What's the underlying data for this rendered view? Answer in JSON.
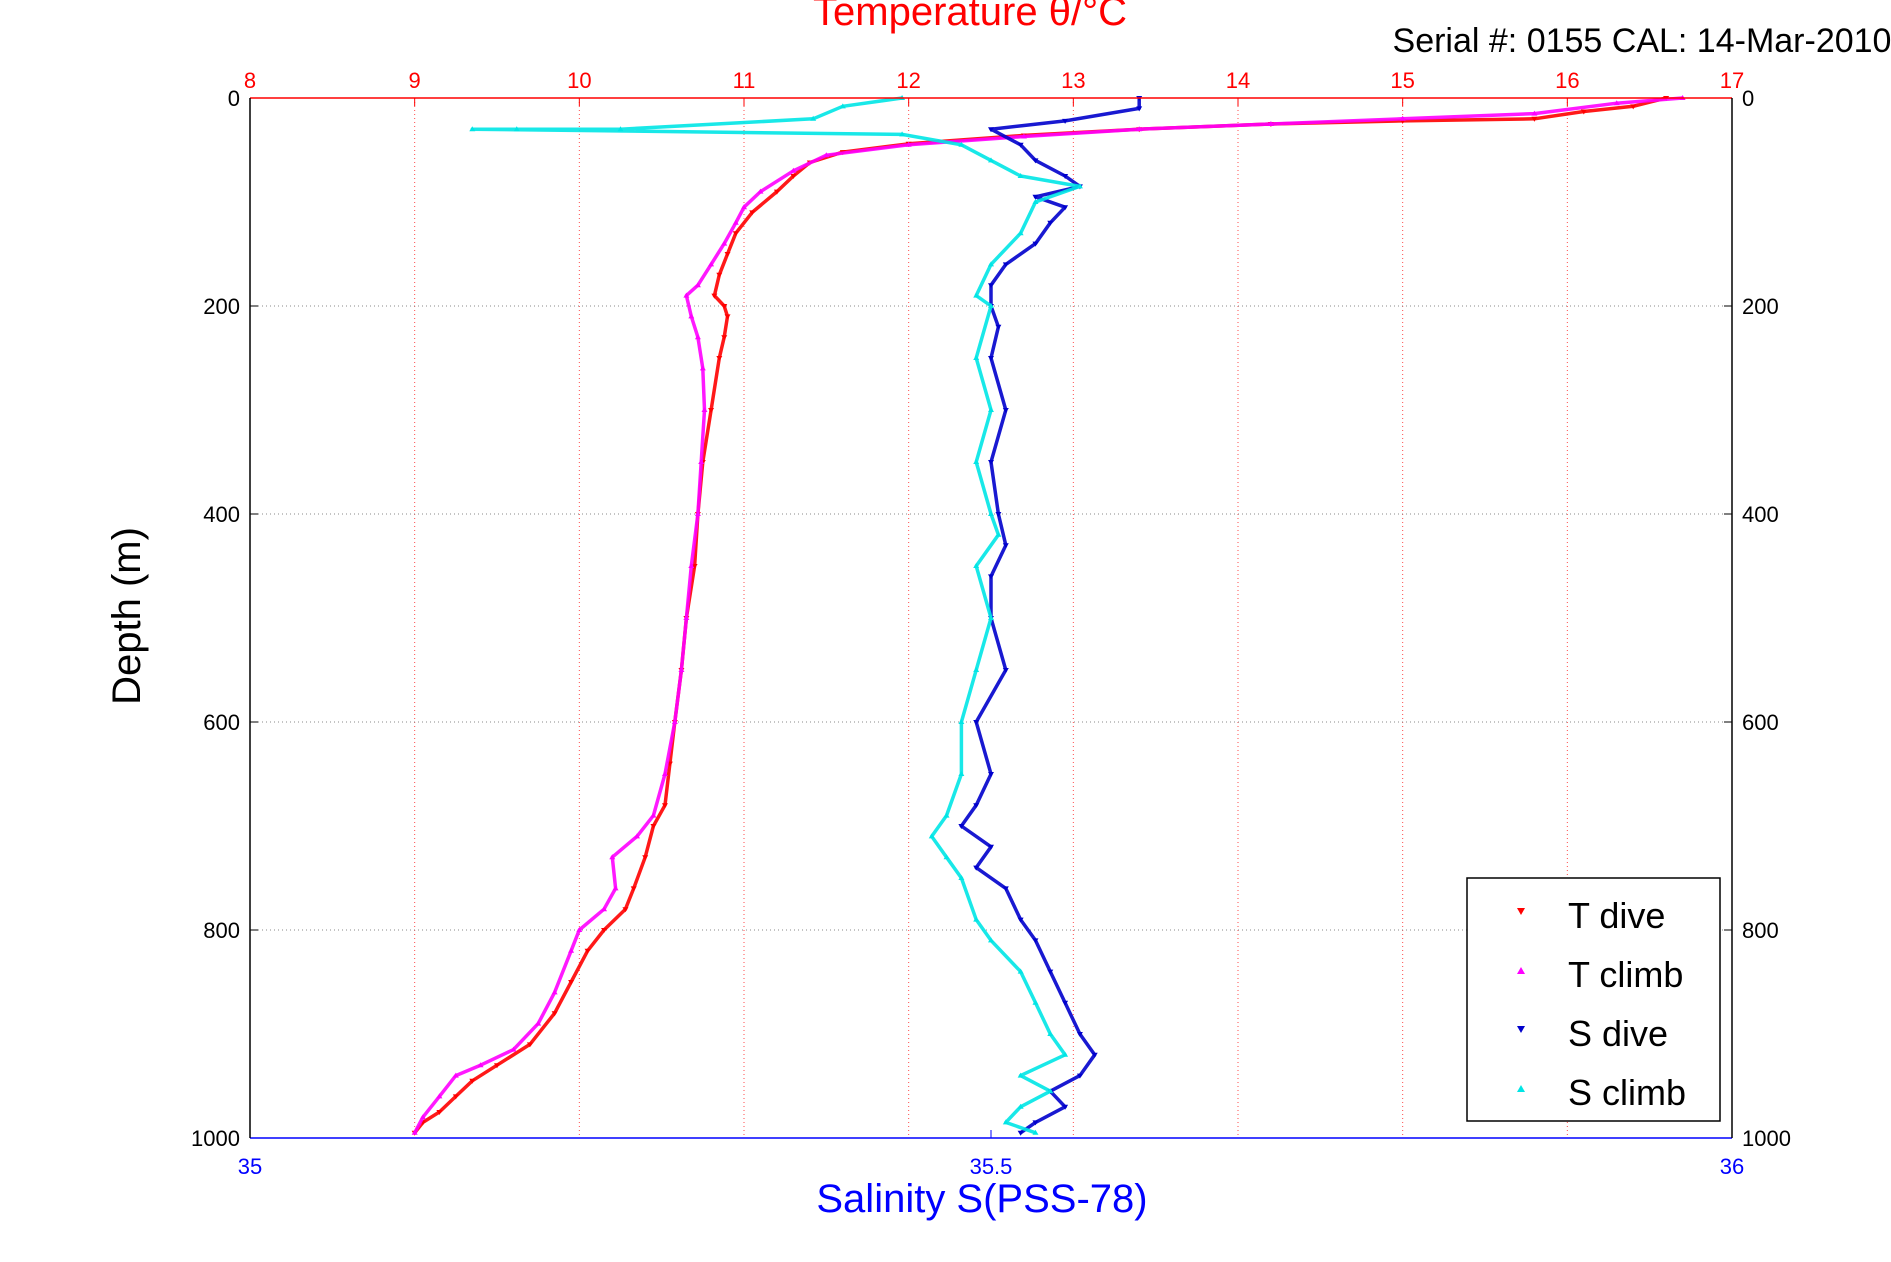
{
  "colors": {
    "temperature_axis": "#ff0000",
    "salinity_axis": "#0000ff",
    "t_dive": "#ff0000",
    "t_climb": "#ff00ff",
    "s_dive": "#0000cc",
    "s_climb": "#00e5e5",
    "grid": "#888888"
  },
  "chart_data": {
    "type": "scatter",
    "title": "Temperature θ/°C",
    "subtitle": "Serial #: 0155  CAL: 14-Mar-2010",
    "ylabel": "Depth (m)",
    "xlabel_bottom": "Salinity S(PSS-78)",
    "xlabel_top": "Temperature θ/°C",
    "ylim": [
      1000,
      0
    ],
    "y_reversed": true,
    "xlim_top": [
      8,
      17
    ],
    "xlim_bottom": [
      35,
      36
    ],
    "top_ticks": [
      "8",
      "9",
      "10",
      "11",
      "12",
      "13",
      "14",
      "15",
      "16",
      "17"
    ],
    "bottom_ticks": [
      "35",
      "35.5",
      "36"
    ],
    "y_ticks": [
      "0",
      "200",
      "400",
      "600",
      "800",
      "1000"
    ],
    "grid": true,
    "legend_position": "bottom-right",
    "series": [
      {
        "name": "T dive",
        "axis": "temperature",
        "marker": "triangle-down",
        "points": [
          [
            16.6,
            0
          ],
          [
            16.4,
            8
          ],
          [
            16.1,
            13
          ],
          [
            15.8,
            20
          ],
          [
            15.0,
            22
          ],
          [
            14.2,
            25
          ],
          [
            13.4,
            30
          ],
          [
            12.7,
            36
          ],
          [
            12.0,
            44
          ],
          [
            11.6,
            52
          ],
          [
            11.4,
            62
          ],
          [
            11.3,
            75
          ],
          [
            11.2,
            90
          ],
          [
            11.05,
            110
          ],
          [
            10.95,
            130
          ],
          [
            10.9,
            150
          ],
          [
            10.85,
            170
          ],
          [
            10.82,
            190
          ],
          [
            10.88,
            200
          ],
          [
            10.9,
            210
          ],
          [
            10.88,
            230
          ],
          [
            10.85,
            250
          ],
          [
            10.8,
            300
          ],
          [
            10.75,
            350
          ],
          [
            10.72,
            400
          ],
          [
            10.7,
            450
          ],
          [
            10.65,
            500
          ],
          [
            10.62,
            550
          ],
          [
            10.58,
            600
          ],
          [
            10.55,
            640
          ],
          [
            10.52,
            680
          ],
          [
            10.45,
            700
          ],
          [
            10.4,
            730
          ],
          [
            10.33,
            760
          ],
          [
            10.28,
            780
          ],
          [
            10.15,
            800
          ],
          [
            10.05,
            820
          ],
          [
            9.95,
            850
          ],
          [
            9.85,
            880
          ],
          [
            9.7,
            910
          ],
          [
            9.5,
            930
          ],
          [
            9.35,
            945
          ],
          [
            9.25,
            960
          ],
          [
            9.15,
            975
          ],
          [
            9.05,
            985
          ],
          [
            9.0,
            995
          ]
        ]
      },
      {
        "name": "T climb",
        "axis": "temperature",
        "marker": "triangle-up",
        "points": [
          [
            16.7,
            0
          ],
          [
            16.3,
            5
          ],
          [
            15.8,
            15
          ],
          [
            15.0,
            20
          ],
          [
            14.2,
            25
          ],
          [
            13.4,
            30
          ],
          [
            12.7,
            37
          ],
          [
            12.0,
            45
          ],
          [
            11.5,
            55
          ],
          [
            11.3,
            70
          ],
          [
            11.1,
            90
          ],
          [
            11.0,
            105
          ],
          [
            10.95,
            120
          ],
          [
            10.88,
            140
          ],
          [
            10.8,
            160
          ],
          [
            10.72,
            180
          ],
          [
            10.65,
            190
          ],
          [
            10.68,
            210
          ],
          [
            10.72,
            230
          ],
          [
            10.75,
            260
          ],
          [
            10.76,
            300
          ],
          [
            10.74,
            350
          ],
          [
            10.72,
            400
          ],
          [
            10.68,
            450
          ],
          [
            10.65,
            500
          ],
          [
            10.62,
            550
          ],
          [
            10.58,
            600
          ],
          [
            10.52,
            650
          ],
          [
            10.45,
            690
          ],
          [
            10.35,
            710
          ],
          [
            10.2,
            730
          ],
          [
            10.22,
            760
          ],
          [
            10.15,
            780
          ],
          [
            10.0,
            800
          ],
          [
            9.95,
            820
          ],
          [
            9.85,
            860
          ],
          [
            9.75,
            890
          ],
          [
            9.6,
            915
          ],
          [
            9.4,
            930
          ],
          [
            9.25,
            940
          ],
          [
            9.15,
            960
          ],
          [
            9.05,
            980
          ],
          [
            9.0,
            995
          ]
        ]
      },
      {
        "name": "S dive",
        "axis": "salinity",
        "marker": "triangle-down",
        "points": [
          [
            35.6,
            0
          ],
          [
            35.6,
            10
          ],
          [
            35.55,
            22
          ],
          [
            35.5,
            30
          ],
          [
            35.52,
            45
          ],
          [
            35.53,
            60
          ],
          [
            35.55,
            75
          ],
          [
            35.56,
            85
          ],
          [
            35.53,
            95
          ],
          [
            35.55,
            105
          ],
          [
            35.54,
            120
          ],
          [
            35.53,
            140
          ],
          [
            35.51,
            160
          ],
          [
            35.5,
            180
          ],
          [
            35.5,
            200
          ],
          [
            35.505,
            220
          ],
          [
            35.5,
            250
          ],
          [
            35.51,
            300
          ],
          [
            35.5,
            350
          ],
          [
            35.505,
            400
          ],
          [
            35.51,
            430
          ],
          [
            35.5,
            460
          ],
          [
            35.5,
            500
          ],
          [
            35.51,
            550
          ],
          [
            35.49,
            600
          ],
          [
            35.5,
            650
          ],
          [
            35.49,
            680
          ],
          [
            35.48,
            700
          ],
          [
            35.5,
            720
          ],
          [
            35.49,
            740
          ],
          [
            35.51,
            760
          ],
          [
            35.52,
            790
          ],
          [
            35.53,
            810
          ],
          [
            35.54,
            840
          ],
          [
            35.55,
            870
          ],
          [
            35.56,
            900
          ],
          [
            35.57,
            920
          ],
          [
            35.56,
            940
          ],
          [
            35.54,
            955
          ],
          [
            35.55,
            970
          ],
          [
            35.53,
            985
          ],
          [
            35.52,
            995
          ]
        ]
      },
      {
        "name": "S climb",
        "axis": "salinity",
        "marker": "triangle-up",
        "points": [
          [
            35.44,
            0
          ],
          [
            35.4,
            8
          ],
          [
            35.38,
            20
          ],
          [
            35.25,
            30
          ],
          [
            35.18,
            30
          ],
          [
            35.15,
            30
          ],
          [
            35.44,
            35
          ],
          [
            35.48,
            45
          ],
          [
            35.5,
            60
          ],
          [
            35.52,
            75
          ],
          [
            35.56,
            85
          ],
          [
            35.53,
            100
          ],
          [
            35.52,
            130
          ],
          [
            35.5,
            160
          ],
          [
            35.49,
            190
          ],
          [
            35.5,
            200
          ],
          [
            35.49,
            250
          ],
          [
            35.5,
            300
          ],
          [
            35.49,
            350
          ],
          [
            35.5,
            400
          ],
          [
            35.505,
            420
          ],
          [
            35.49,
            450
          ],
          [
            35.5,
            500
          ],
          [
            35.49,
            550
          ],
          [
            35.48,
            600
          ],
          [
            35.48,
            650
          ],
          [
            35.47,
            690
          ],
          [
            35.46,
            710
          ],
          [
            35.47,
            730
          ],
          [
            35.48,
            750
          ],
          [
            35.49,
            790
          ],
          [
            35.5,
            810
          ],
          [
            35.52,
            840
          ],
          [
            35.53,
            870
          ],
          [
            35.54,
            900
          ],
          [
            35.55,
            920
          ],
          [
            35.52,
            940
          ],
          [
            35.54,
            955
          ],
          [
            35.52,
            970
          ],
          [
            35.51,
            985
          ],
          [
            35.53,
            995
          ]
        ]
      }
    ]
  }
}
